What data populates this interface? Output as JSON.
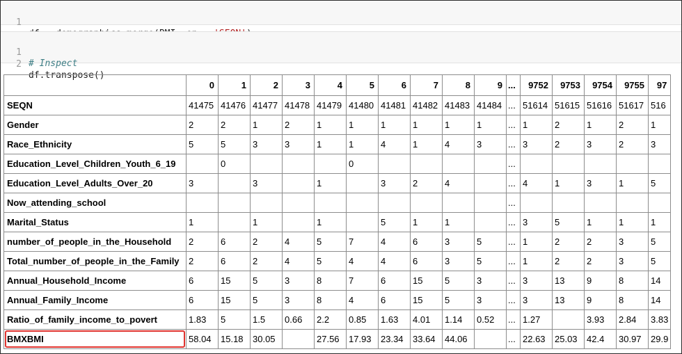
{
  "cells": [
    {
      "lines": [
        {
          "num": "1",
          "parts": [
            {
              "text": "df = demographics.merge(BMI, on = ",
              "kind": "code"
            },
            {
              "text": "'SEQN'",
              "kind": "str"
            },
            {
              "text": ")",
              "kind": "code"
            }
          ]
        }
      ]
    },
    {
      "lines": [
        {
          "num": "1",
          "parts": [
            {
              "text": "# Inspect",
              "kind": "comment"
            }
          ]
        },
        {
          "num": "2",
          "parts": [
            {
              "text": "df.transpose()",
              "kind": "code"
            }
          ]
        }
      ]
    }
  ],
  "table": {
    "columns": [
      "0",
      "1",
      "2",
      "3",
      "4",
      "5",
      "6",
      "7",
      "8",
      "9",
      "...",
      "9752",
      "9753",
      "9754",
      "9755",
      "97"
    ],
    "rows": [
      {
        "label": "SEQN",
        "values": [
          "41475",
          "41476",
          "41477",
          "41478",
          "41479",
          "41480",
          "41481",
          "41482",
          "41483",
          "41484",
          "...",
          "51614",
          "51615",
          "51616",
          "51617",
          "516"
        ]
      },
      {
        "label": "Gender",
        "values": [
          "2",
          "2",
          "1",
          "2",
          "1",
          "1",
          "1",
          "1",
          "1",
          "1",
          "...",
          "1",
          "2",
          "1",
          "2",
          "1"
        ]
      },
      {
        "label": "Race_Ethnicity",
        "values": [
          "5",
          "5",
          "3",
          "3",
          "1",
          "1",
          "4",
          "1",
          "4",
          "3",
          "...",
          "3",
          "2",
          "3",
          "2",
          "3"
        ]
      },
      {
        "label": "Education_Level_Children_Youth_6_19",
        "values": [
          "",
          "0",
          "",
          "",
          "",
          "0",
          "",
          "",
          "",
          "",
          "...",
          "",
          "",
          "",
          "",
          ""
        ]
      },
      {
        "label": "Education_Level_Adults_Over_20",
        "values": [
          "3",
          "",
          "3",
          "",
          "1",
          "",
          "3",
          "2",
          "4",
          "",
          "...",
          "4",
          "1",
          "3",
          "1",
          "5"
        ]
      },
      {
        "label": "Now_attending_school",
        "values": [
          "",
          "",
          "",
          "",
          "",
          "",
          "",
          "",
          "",
          "",
          "...",
          "",
          "",
          "",
          "",
          ""
        ]
      },
      {
        "label": "Marital_Status",
        "values": [
          "1",
          "",
          "1",
          "",
          "1",
          "",
          "5",
          "1",
          "1",
          "",
          "...",
          "3",
          "5",
          "1",
          "1",
          "1"
        ]
      },
      {
        "label": "number_of_people_in_the_Household",
        "values": [
          "2",
          "6",
          "2",
          "4",
          "5",
          "7",
          "4",
          "6",
          "3",
          "5",
          "...",
          "1",
          "2",
          "2",
          "3",
          "5"
        ]
      },
      {
        "label": "Total_number_of_people_in_the_Family",
        "values": [
          "2",
          "6",
          "2",
          "4",
          "5",
          "4",
          "4",
          "6",
          "3",
          "5",
          "...",
          "1",
          "2",
          "2",
          "3",
          "5"
        ]
      },
      {
        "label": "Annual_Household_Income",
        "values": [
          "6",
          "15",
          "5",
          "3",
          "8",
          "7",
          "6",
          "15",
          "5",
          "3",
          "...",
          "3",
          "13",
          "9",
          "8",
          "14"
        ]
      },
      {
        "label": "Annual_Family_Income",
        "values": [
          "6",
          "15",
          "5",
          "3",
          "8",
          "4",
          "6",
          "15",
          "5",
          "3",
          "...",
          "3",
          "13",
          "9",
          "8",
          "14"
        ]
      },
      {
        "label": "Ratio_of_family_income_to_povert",
        "values": [
          "1.83",
          "5",
          "1.5",
          "0.66",
          "2.2",
          "0.85",
          "1.63",
          "4.01",
          "1.14",
          "0.52",
          "...",
          "1.27",
          "",
          "3.93",
          "2.84",
          "3.83"
        ]
      },
      {
        "label": "BMXBMI",
        "highlight": true,
        "values": [
          "58.04",
          "15.18",
          "30.05",
          "",
          "27.56",
          "17.93",
          "23.34",
          "33.64",
          "44.06",
          "",
          "...",
          "22.63",
          "25.03",
          "42.4",
          "30.97",
          "29.9"
        ]
      }
    ]
  },
  "colors": {
    "highlight": "#e0332e",
    "string": "#b22222",
    "comment": "#3f7f86",
    "cell_bg": "#f7f7f7"
  }
}
